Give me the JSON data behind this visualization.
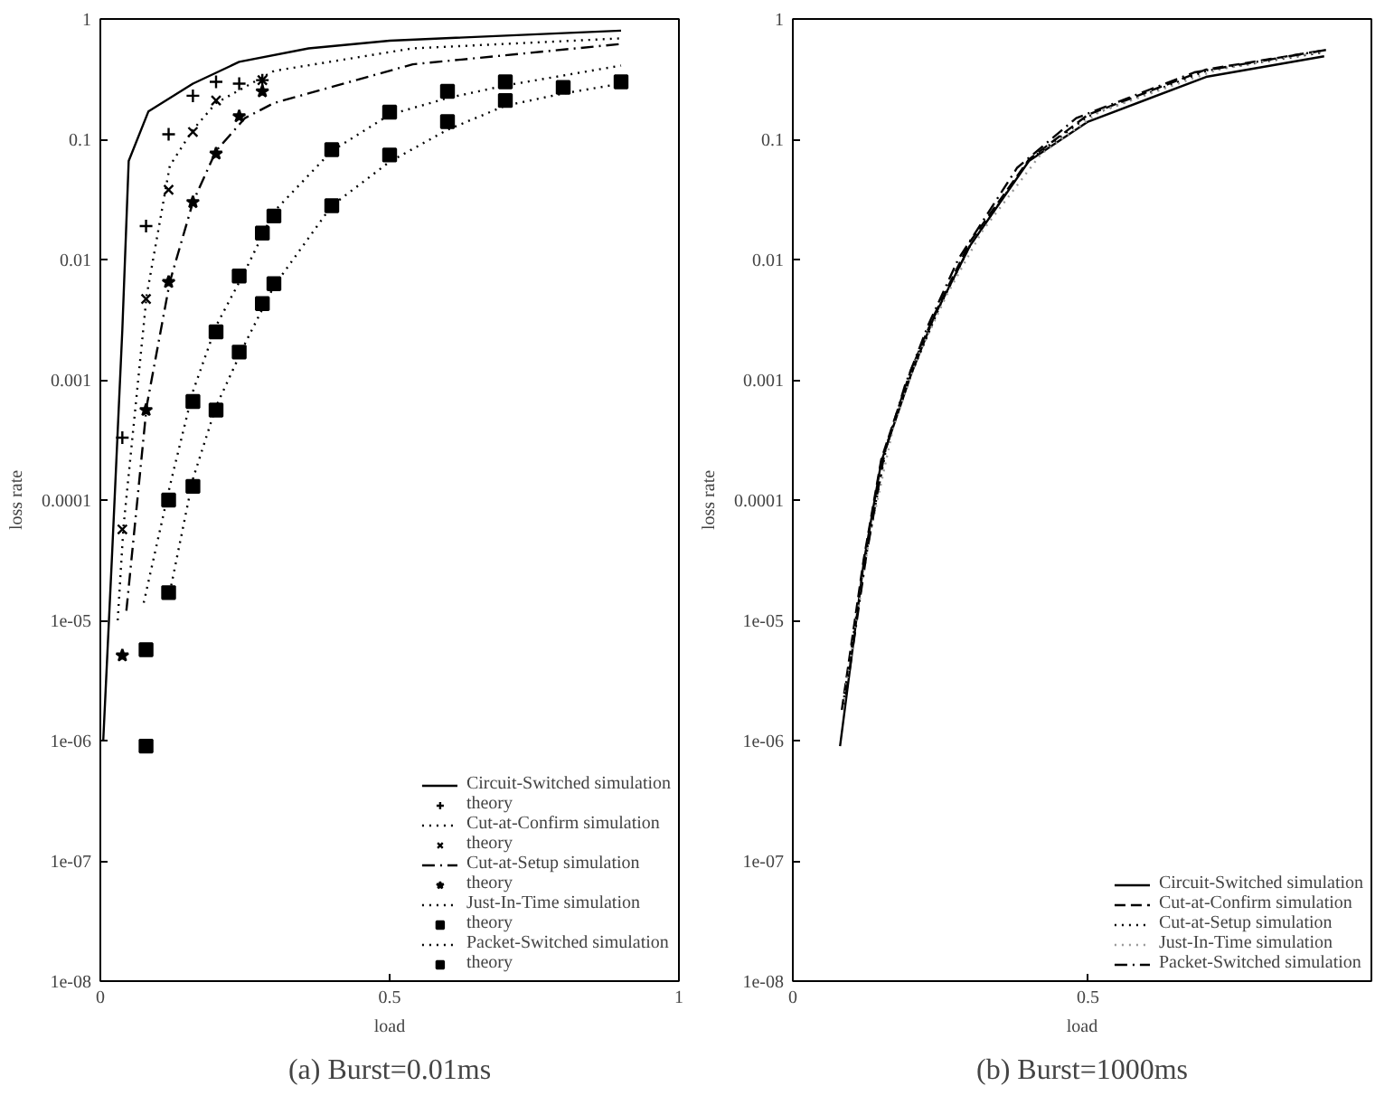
{
  "chart_data": [
    {
      "type": "line",
      "title": "(a) Burst=0.01ms",
      "xlabel": "load",
      "ylabel": "loss rate",
      "log": "y",
      "grid": false,
      "legend": "bottom right",
      "xlim": [
        0,
        1
      ],
      "xticks": [
        0,
        0.5,
        1
      ],
      "ylim": [
        1e-08,
        1
      ],
      "yticks": [
        {
          "value": 1e-08,
          "label": "1e-08"
        },
        {
          "value": 1e-07,
          "label": "1e-07"
        },
        {
          "value": 1e-06,
          "label": "1e-06"
        },
        {
          "value": 1e-05,
          "label": "1e-05"
        },
        0.0001,
        0.001,
        0.01,
        0.1,
        1
      ],
      "series": [
        {
          "name": "Circuit-Switched simulation",
          "line_style": "solid",
          "color": "#000000",
          "x": [
            0.005,
            0.02,
            0.038,
            0.049,
            0.083,
            0.16,
            0.24,
            0.36,
            0.5,
            0.9
          ],
          "values": [
            1e-06,
            3.3e-05,
            0.0026,
            0.066,
            0.17,
            0.29,
            0.44,
            0.57,
            0.66,
            0.8
          ]
        },
        {
          "name": "theory",
          "type": "scatter",
          "marker": "cross",
          "color": "#000000",
          "x": [
            0.038,
            0.079,
            0.118,
            0.16,
            0.2,
            0.24,
            0.28
          ],
          "values": [
            0.00033,
            0.019,
            0.11,
            0.23,
            0.3,
            0.29,
            0.31
          ]
        },
        {
          "name": "Cut-at-Confirm simulation",
          "line_style": "dotted",
          "color": "#000000",
          "x": [
            0.03,
            0.04,
            0.08,
            0.12,
            0.16,
            0.2,
            0.3,
            0.54,
            0.9
          ],
          "values": [
            1e-05,
            6e-05,
            0.005,
            0.06,
            0.12,
            0.2,
            0.37,
            0.57,
            0.69
          ]
        },
        {
          "name": "theory",
          "type": "scatter",
          "marker": "x",
          "color": "#000000",
          "x": [
            0.038,
            0.079,
            0.118,
            0.16,
            0.2,
            0.28
          ],
          "values": [
            5.7e-05,
            0.0047,
            0.038,
            0.115,
            0.21,
            0.31
          ]
        },
        {
          "name": "Cut-at-Setup simulation",
          "line_style": "dashdot",
          "color": "#000000",
          "x": [
            0.045,
            0.08,
            0.12,
            0.16,
            0.2,
            0.25,
            0.3,
            0.54,
            0.9
          ],
          "values": [
            1.2e-05,
            0.0006,
            0.0065,
            0.03,
            0.08,
            0.15,
            0.2,
            0.42,
            0.62
          ]
        },
        {
          "name": "theory",
          "type": "scatter",
          "marker": "star",
          "color": "#000000",
          "x": [
            0.038,
            0.079,
            0.118,
            0.16,
            0.2,
            0.24,
            0.28
          ],
          "values": [
            5.1e-06,
            0.00056,
            0.0065,
            0.03,
            0.076,
            0.155,
            0.25
          ]
        },
        {
          "name": "Just-In-Time simulation",
          "line_style": "dotted",
          "color": "#000000",
          "x": [
            0.075,
            0.12,
            0.16,
            0.2,
            0.25,
            0.3,
            0.4,
            0.5,
            0.6,
            0.7,
            0.9
          ],
          "values": [
            1.4e-05,
            0.00013,
            0.0008,
            0.0028,
            0.008,
            0.025,
            0.08,
            0.16,
            0.22,
            0.28,
            0.41
          ]
        },
        {
          "name": "theory",
          "type": "scatter",
          "marker": "square",
          "color": "#000000",
          "x": [
            0.079,
            0.118,
            0.16,
            0.2,
            0.24,
            0.28,
            0.3,
            0.4,
            0.5,
            0.6,
            0.7
          ],
          "values": [
            5.7e-06,
            0.0001,
            0.00066,
            0.0025,
            0.0073,
            0.0166,
            0.023,
            0.082,
            0.168,
            0.25,
            0.3
          ]
        },
        {
          "name": "Packet-Switched simulation",
          "line_style": "dotted",
          "color": "#000000",
          "x": [
            0.12,
            0.16,
            0.2,
            0.25,
            0.3,
            0.4,
            0.5,
            0.6,
            0.7,
            0.8,
            0.9
          ],
          "values": [
            1.7e-05,
            0.00015,
            0.0006,
            0.002,
            0.006,
            0.028,
            0.065,
            0.12,
            0.19,
            0.24,
            0.29
          ]
        },
        {
          "name": "theory",
          "type": "scatter",
          "marker": "square",
          "color": "#000000",
          "x": [
            0.079,
            0.118,
            0.16,
            0.2,
            0.24,
            0.28,
            0.3,
            0.4,
            0.5,
            0.6,
            0.7,
            0.8,
            0.9
          ],
          "values": [
            9e-07,
            1.7e-05,
            0.00013,
            0.00056,
            0.0017,
            0.0043,
            0.0063,
            0.028,
            0.074,
            0.14,
            0.21,
            0.27,
            0.3
          ]
        }
      ]
    },
    {
      "type": "line",
      "title": "(b) Burst=1000ms",
      "xlabel": "load",
      "ylabel": "loss rate",
      "log": "y",
      "grid": false,
      "legend": "bottom right",
      "xlim": [
        0,
        0.98
      ],
      "xticks": [
        0,
        0.5
      ],
      "ylim": [
        1e-08,
        1
      ],
      "yticks": [
        {
          "value": 1e-08,
          "label": "1e-08"
        },
        {
          "value": 1e-07,
          "label": "1e-07"
        },
        {
          "value": 1e-06,
          "label": "1e-06"
        },
        {
          "value": 1e-05,
          "label": "1e-05"
        },
        0.0001,
        0.001,
        0.01,
        0.1,
        1
      ],
      "series": [
        {
          "name": "Circuit-Switched simulation",
          "line_style": "solid",
          "color": "#000000",
          "x": [
            0.08,
            0.12,
            0.15,
            0.2,
            0.24,
            0.3,
            0.4,
            0.5,
            0.7,
            0.9
          ],
          "values": [
            9e-07,
            3e-05,
            0.00021,
            0.0011,
            0.0034,
            0.013,
            0.066,
            0.14,
            0.33,
            0.49
          ]
        },
        {
          "name": "Cut-at-Confirm simulation",
          "line_style": "dashed",
          "color": "#000000",
          "x": [
            0.083,
            0.12,
            0.15,
            0.2,
            0.24,
            0.3,
            0.4,
            0.5,
            0.7,
            0.9
          ],
          "values": [
            1.8e-06,
            3.2e-05,
            0.00022,
            0.0012,
            0.0035,
            0.014,
            0.068,
            0.16,
            0.38,
            0.55
          ]
        },
        {
          "name": "Cut-at-Setup simulation",
          "line_style": "dotted",
          "color": "#000000",
          "x": [
            0.085,
            0.12,
            0.16,
            0.2,
            0.25,
            0.3,
            0.4,
            0.5,
            0.7,
            0.9
          ],
          "values": [
            2e-06,
            2.8e-05,
            0.0003,
            0.0011,
            0.0042,
            0.013,
            0.067,
            0.155,
            0.37,
            0.53
          ]
        },
        {
          "name": "Just-In-Time simulation",
          "line_style": "dotted",
          "color": "#999999",
          "x": [
            0.087,
            0.13,
            0.17,
            0.21,
            0.26,
            0.32,
            0.42,
            0.52,
            0.72,
            0.9
          ],
          "values": [
            2.2e-06,
            5e-05,
            0.0004,
            0.0015,
            0.005,
            0.017,
            0.075,
            0.17,
            0.38,
            0.54
          ]
        },
        {
          "name": "Packet-Switched simulation",
          "line_style": "dashdot",
          "color": "#000000",
          "x": [
            0.09,
            0.125,
            0.155,
            0.19,
            0.23,
            0.28,
            0.38,
            0.48,
            0.68,
            0.91
          ],
          "values": [
            2.4e-06,
            3.6e-05,
            0.00024,
            0.0009,
            0.0029,
            0.01,
            0.058,
            0.15,
            0.36,
            0.56
          ]
        }
      ]
    }
  ]
}
